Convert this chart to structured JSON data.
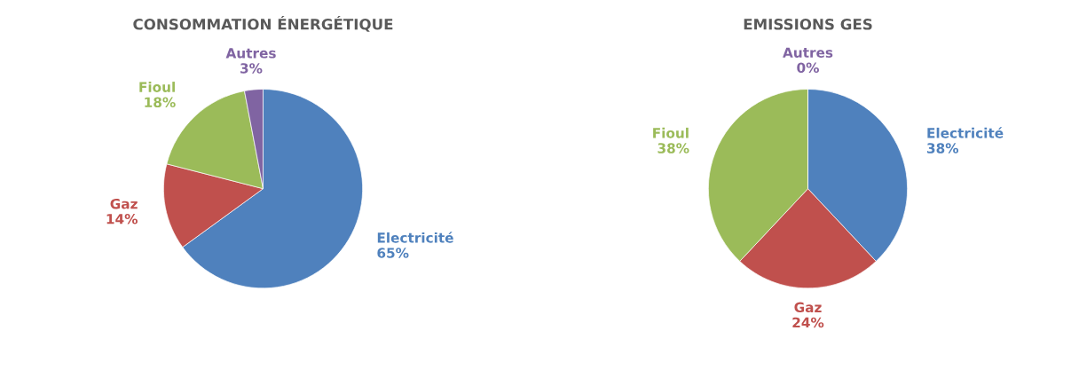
{
  "chart_data": [
    {
      "type": "pie",
      "title": "CONSOMMATION ÉNERGÉTIQUE",
      "categories": [
        "Electricité",
        "Gaz",
        "Fioul",
        "Autres"
      ],
      "values": [
        65,
        14,
        18,
        3
      ],
      "value_labels": [
        "65%",
        "14%",
        "18%",
        "3%"
      ],
      "colors": [
        "#4f81bd",
        "#c0504d",
        "#9bbb59",
        "#8064a2"
      ]
    },
    {
      "type": "pie",
      "title": "EMISSIONS GES",
      "categories": [
        "Electricité",
        "Gaz",
        "Fioul",
        "Autres"
      ],
      "values": [
        38,
        24,
        38,
        0
      ],
      "value_labels": [
        "38%",
        "24%",
        "38%",
        "0%"
      ],
      "colors": [
        "#4f81bd",
        "#c0504d",
        "#9bbb59",
        "#8064a2"
      ]
    }
  ]
}
